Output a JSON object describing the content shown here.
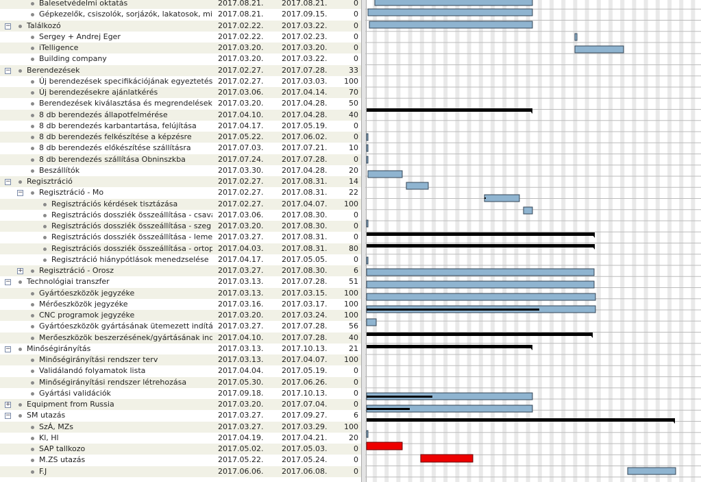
{
  "rows": [
    {
      "name": "Balesetvédelmi oktatás",
      "start": "2017.08.21.",
      "end": "2017.08.21.",
      "pct": 0
    },
    {
      "name": "Gépkezelők, csiszolók,  sorjázók, lakatosok, minős...",
      "start": "2017.08.21.",
      "end": "2017.09.15.",
      "pct": 0
    },
    {
      "name": "Találkozó",
      "start": "2017.02.22.",
      "end": "2017.03.22.",
      "pct": 0
    },
    {
      "name": "Sergey + Andrej Eger",
      "start": "2017.02.22.",
      "end": "2017.02.23.",
      "pct": 0
    },
    {
      "name": "iTelligence",
      "start": "2017.03.20.",
      "end": "2017.03.20.",
      "pct": 0
    },
    {
      "name": "Building company",
      "start": "2017.03.20.",
      "end": "2017.03.22.",
      "pct": 0
    },
    {
      "name": "Berendezések",
      "start": "2017.02.27.",
      "end": "2017.07.28.",
      "pct": 33
    },
    {
      "name": "Új berendezések specifikációjának egyeztetése",
      "start": "2017.02.27.",
      "end": "2017.03.03.",
      "pct": 100
    },
    {
      "name": "Új berendezésekre ajánlatkérés",
      "start": "2017.03.06.",
      "end": "2017.04.14.",
      "pct": 70
    },
    {
      "name": "Berendezések kiválasztása és megrendelések ind...",
      "start": "2017.03.20.",
      "end": "2017.04.28.",
      "pct": 50
    },
    {
      "name": "8 db berendezés állapotfelmérése",
      "start": "2017.04.10.",
      "end": "2017.04.28.",
      "pct": 40
    },
    {
      "name": "8 db berendezés karbantartása, felújítása",
      "start": "2017.04.17.",
      "end": "2017.05.19.",
      "pct": 0
    },
    {
      "name": "8 db berendezés felkészítése a képzésre",
      "start": "2017.05.22.",
      "end": "2017.06.02.",
      "pct": 0
    },
    {
      "name": "8 db berendezés előkészítése szállításra",
      "start": "2017.07.03.",
      "end": "2017.07.21.",
      "pct": 10
    },
    {
      "name": "8 db berendezés szállítása Obninszkba",
      "start": "2017.07.24.",
      "end": "2017.07.28.",
      "pct": 0
    },
    {
      "name": "Beszállítók",
      "start": "2017.03.30.",
      "end": "2017.04.28.",
      "pct": 20
    },
    {
      "name": "Regisztráció",
      "start": "2017.02.27.",
      "end": "2017.08.31.",
      "pct": 14
    },
    {
      "name": "Regisztráció - Mo",
      "start": "2017.02.27.",
      "end": "2017.08.31.",
      "pct": 22
    },
    {
      "name": "Regisztrációs kérdések tisztázása",
      "start": "2017.02.27.",
      "end": "2017.04.07.",
      "pct": 100
    },
    {
      "name": "Regisztrációs dossziék összeállítása - csavar",
      "start": "2017.03.06.",
      "end": "2017.08.30.",
      "pct": 0
    },
    {
      "name": "Regisztrációs dossziék összeállítása - szeg",
      "start": "2017.03.20.",
      "end": "2017.08.30.",
      "pct": 0
    },
    {
      "name": "Regisztrációs dossziék összeállítása - lemez",
      "start": "2017.03.27.",
      "end": "2017.08.31.",
      "pct": 0
    },
    {
      "name": "Regisztrációs dossziék összeállítása - ortopédia",
      "start": "2017.04.03.",
      "end": "2017.08.31.",
      "pct": 80
    },
    {
      "name": "Regisztráció hiánypótlások menedzselése",
      "start": "2017.04.17.",
      "end": "2017.05.05.",
      "pct": 0
    },
    {
      "name": "Regisztráció - Orosz",
      "start": "2017.03.27.",
      "end": "2017.08.30.",
      "pct": 6
    },
    {
      "name": "Technológiai transzfer",
      "start": "2017.03.13.",
      "end": "2017.07.28.",
      "pct": 51
    },
    {
      "name": "Gyártóeszközök jegyzéke",
      "start": "2017.03.13.",
      "end": "2017.03.15.",
      "pct": 100
    },
    {
      "name": "Mérőeszközök jegyzéke",
      "start": "2017.03.16.",
      "end": "2017.03.17.",
      "pct": 100
    },
    {
      "name": "CNC programok jegyzéke",
      "start": "2017.03.20.",
      "end": "2017.03.24.",
      "pct": 100
    },
    {
      "name": "Gyártóeszközök gyártásának ütemezett indítása, kö...",
      "start": "2017.03.27.",
      "end": "2017.07.28.",
      "pct": 56
    },
    {
      "name": "Merőeszközök beszerzésének/gyártásának indítása",
      "start": "2017.04.10.",
      "end": "2017.07.28.",
      "pct": 40
    },
    {
      "name": "Minőségirányítás",
      "start": "2017.03.13.",
      "end": "2017.10.13.",
      "pct": 21
    },
    {
      "name": "Minőségirányítási rendszer terv",
      "start": "2017.03.13.",
      "end": "2017.04.07.",
      "pct": 100
    },
    {
      "name": "Validálandó folyamatok lista",
      "start": "2017.04.04.",
      "end": "2017.05.19.",
      "pct": 0
    },
    {
      "name": "Minőségirányítási rendszer létrehozása",
      "start": "2017.05.30.",
      "end": "2017.06.26.",
      "pct": 0
    },
    {
      "name": "Gyártási validációk",
      "start": "2017.09.18.",
      "end": "2017.10.13.",
      "pct": 0
    },
    {
      "name": "Equipment from Russia",
      "start": "2017.03.20.",
      "end": "2017.07.04.",
      "pct": 0
    },
    {
      "name": "SM utazás",
      "start": "2017.03.27.",
      "end": "2017.09.27.",
      "pct": 6
    },
    {
      "name": "SzÁ, MZs",
      "start": "2017.03.27.",
      "end": "2017.03.29.",
      "pct": 100
    },
    {
      "name": "Kl, Hl",
      "start": "2017.04.19.",
      "end": "2017.04.21.",
      "pct": 20
    },
    {
      "name": "SAP tallkozo",
      "start": "2017.05.02.",
      "end": "2017.05.03.",
      "pct": 0
    },
    {
      "name": "M.ZS utazás",
      "start": "2017.05.22.",
      "end": "2017.05.24.",
      "pct": 0
    },
    {
      "name": "F.J",
      "start": "2017.06.06.",
      "end": "2017.06.08.",
      "pct": 0
    }
  ]
}
